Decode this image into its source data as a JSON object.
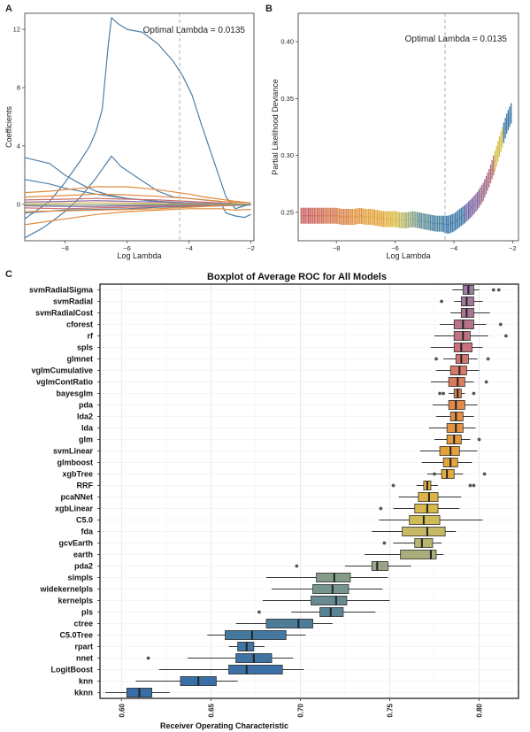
{
  "panels": {
    "A": {
      "letter": "A",
      "xlabel": "Log Lambda",
      "ylabel": "Coefficients",
      "annotation": "Optimal Lambda = 0.0135",
      "xlim": [
        -9.3,
        -1.9
      ],
      "ylim": [
        -2.5,
        13.1
      ],
      "xticks": [
        -8,
        -6,
        -4,
        -2
      ],
      "yticks": [
        0,
        4,
        8,
        12
      ],
      "optimal_log_lambda": -4.3
    },
    "B": {
      "letter": "B",
      "xlabel": "Log Lambda",
      "ylabel": "Partial Likelihood Deviance",
      "annotation": "Optimal Lambda = 0.0135",
      "xlim": [
        -9.3,
        -1.8
      ],
      "ylim": [
        0.225,
        0.425
      ],
      "xticks": [
        -8,
        -6,
        -4,
        -2
      ],
      "yticks": [
        0.25,
        0.3,
        0.35,
        0.4
      ],
      "optimal_log_lambda": -4.3
    },
    "C": {
      "letter": "C",
      "title": "Boxplot of Average ROC for All Models",
      "xlabel": "Receiver Operating Characteristic",
      "xlim": [
        0.588,
        0.822
      ],
      "xticks": [
        0.6,
        0.65,
        0.7,
        0.75,
        0.8
      ]
    }
  },
  "chart_data": [
    {
      "type": "line",
      "panel": "A",
      "xlabel": "Log Lambda",
      "ylabel": "Coefficients",
      "series": [
        {
          "color": "#4f7fa6",
          "x": [
            -9.3,
            -8.5,
            -8.0,
            -7.5,
            -7.2,
            -7.0,
            -6.8,
            -6.6,
            -6.5,
            -6.3,
            -6.0,
            -5.5,
            -5.0,
            -4.5,
            -4.2,
            -3.9,
            -3.6,
            -3.2,
            -2.8,
            -2.5,
            -2.2,
            -2.0
          ],
          "y": [
            -1.0,
            0.2,
            1.5,
            3.0,
            4.0,
            5.0,
            6.5,
            11.0,
            12.8,
            12.4,
            12.0,
            11.8,
            11.0,
            9.8,
            8.8,
            7.5,
            5.5,
            3.0,
            0.5,
            -0.3,
            -0.1,
            0.0
          ]
        },
        {
          "color": "#4f7fa6",
          "x": [
            -9.3,
            -8.7,
            -8.0,
            -7.5,
            -7.0,
            -6.6,
            -6.5,
            -6.2,
            -5.5,
            -5.0,
            -4.5,
            -4.0,
            -3.5,
            -3.0,
            -2.8,
            -2.5,
            -2.2,
            -2.0
          ],
          "y": [
            -2.3,
            -1.6,
            -0.5,
            0.5,
            1.8,
            3.0,
            3.3,
            2.6,
            1.6,
            0.9,
            0.5,
            0.4,
            0.3,
            0.2,
            -0.6,
            -0.8,
            -0.9,
            -0.7
          ]
        },
        {
          "color": "#4f7fa6",
          "x": [
            -9.3,
            -8.5,
            -8.0,
            -7.5,
            -7.0,
            -6.5,
            -6.0,
            -5.5,
            -5.0,
            -4.5,
            -4.0,
            -3.5,
            -3.0,
            -2.5,
            -2.0
          ],
          "y": [
            3.2,
            2.8,
            2.0,
            1.4,
            0.9,
            0.6,
            0.4,
            0.3,
            0.2,
            0.1,
            0.05,
            0.0,
            0.0,
            0.0,
            0.0
          ]
        },
        {
          "color": "#4f7fa6",
          "x": [
            -9.3,
            -8.5,
            -8.0,
            -7.0,
            -6.0,
            -5.0,
            -4.0,
            -3.0,
            -2.0
          ],
          "y": [
            1.7,
            1.4,
            1.1,
            0.7,
            0.4,
            0.2,
            0.1,
            0.0,
            0.0
          ]
        },
        {
          "color": "#4f7fa6",
          "x": [
            -9.3,
            -8.0,
            -7.0,
            -6.0,
            -5.0,
            -4.0,
            -3.0,
            -2.0
          ],
          "y": [
            -0.6,
            -0.4,
            -0.35,
            -0.3,
            -0.2,
            -0.15,
            -0.1,
            -0.05
          ]
        },
        {
          "color": "#e08a3c",
          "x": [
            -9.3,
            -8.5,
            -8.0,
            -7.0,
            -6.0,
            -5.0,
            -4.0,
            -3.5,
            -3.0,
            -2.5,
            -2.0
          ],
          "y": [
            0.8,
            0.9,
            1.0,
            1.2,
            1.2,
            1.0,
            0.7,
            0.5,
            0.35,
            0.2,
            0.1
          ]
        },
        {
          "color": "#e08a3c",
          "x": [
            -9.3,
            -8.0,
            -7.0,
            -6.0,
            -5.0,
            -4.0,
            -3.0,
            -2.5,
            -2.0
          ],
          "y": [
            -1.4,
            -1.0,
            -0.7,
            -0.5,
            -0.4,
            -0.3,
            -0.3,
            -0.4,
            -0.35
          ]
        },
        {
          "color": "#e08a3c",
          "x": [
            -9.3,
            -8.0,
            -7.0,
            -6.0,
            -5.0,
            -4.0,
            -3.0,
            -2.0
          ],
          "y": [
            0.5,
            0.6,
            0.7,
            0.65,
            0.55,
            0.4,
            0.2,
            0.1
          ]
        },
        {
          "color": "#e08a3c",
          "x": [
            -9.3,
            -8.0,
            -7.0,
            -6.0,
            -5.0,
            -4.0,
            -3.0,
            -2.0
          ],
          "y": [
            -0.5,
            -0.45,
            -0.4,
            -0.35,
            -0.3,
            -0.2,
            -0.1,
            0.0
          ]
        },
        {
          "color": "#c9706a",
          "x": [
            -9.3,
            -8.0,
            -7.0,
            -6.0,
            -5.0,
            -4.0,
            -3.0,
            -2.0
          ],
          "y": [
            0.3,
            0.35,
            0.4,
            0.35,
            0.3,
            0.2,
            0.1,
            0.0
          ]
        },
        {
          "color": "#c9706a",
          "x": [
            -9.3,
            -8.0,
            -7.0,
            -6.0,
            -5.0,
            -4.0,
            -3.0,
            -2.0
          ],
          "y": [
            -0.25,
            -0.3,
            -0.25,
            -0.2,
            -0.15,
            -0.1,
            -0.05,
            0.0
          ]
        },
        {
          "color": "#8e6aa8",
          "x": [
            -9.3,
            -8.0,
            -7.0,
            -6.0,
            -5.0,
            -4.0,
            -3.0,
            -2.0
          ],
          "y": [
            0.15,
            0.2,
            0.25,
            0.2,
            0.15,
            0.1,
            0.05,
            0.0
          ]
        },
        {
          "color": "#8e6aa8",
          "x": [
            -9.3,
            -8.0,
            -7.0,
            -6.0,
            -5.0,
            -4.0,
            -3.0,
            -2.0
          ],
          "y": [
            -0.1,
            -0.15,
            -0.15,
            -0.1,
            -0.08,
            -0.05,
            -0.02,
            0.0
          ]
        },
        {
          "color": "#d8b655",
          "x": [
            -9.3,
            -8.0,
            -7.0,
            -6.0,
            -5.0,
            -4.0,
            -3.0,
            -2.0
          ],
          "y": [
            0.05,
            0.08,
            0.1,
            0.08,
            0.05,
            0.03,
            0.01,
            0.0
          ]
        },
        {
          "color": "#7fa37a",
          "x": [
            -9.3,
            -8.0,
            -7.0,
            -6.0,
            -5.0,
            -4.0,
            -3.0,
            -2.0
          ],
          "y": [
            -0.05,
            -0.05,
            -0.04,
            -0.03,
            -0.02,
            -0.01,
            0.0,
            0.0
          ]
        }
      ]
    },
    {
      "type": "scatter",
      "panel": "B",
      "xlabel": "Log Lambda",
      "ylabel": "Partial Likelihood Deviance",
      "x": [
        -9.2,
        -9.0,
        -8.8,
        -8.6,
        -8.4,
        -8.2,
        -8.0,
        -7.8,
        -7.6,
        -7.4,
        -7.2,
        -7.0,
        -6.8,
        -6.6,
        -6.4,
        -6.2,
        -6.0,
        -5.8,
        -5.6,
        -5.4,
        -5.2,
        -5.0,
        -4.8,
        -4.6,
        -4.4,
        -4.2,
        -4.0,
        -3.8,
        -3.6,
        -3.4,
        -3.2,
        -3.0,
        -2.8,
        -2.6,
        -2.4,
        -2.2,
        -2.0
      ],
      "y": [
        0.247,
        0.247,
        0.247,
        0.247,
        0.247,
        0.247,
        0.247,
        0.246,
        0.246,
        0.246,
        0.247,
        0.246,
        0.246,
        0.245,
        0.244,
        0.244,
        0.244,
        0.243,
        0.243,
        0.244,
        0.243,
        0.242,
        0.241,
        0.24,
        0.24,
        0.239,
        0.241,
        0.245,
        0.249,
        0.254,
        0.26,
        0.268,
        0.28,
        0.295,
        0.312,
        0.328,
        0.34
      ],
      "err": [
        0.007,
        0.007,
        0.007,
        0.007,
        0.007,
        0.007,
        0.007,
        0.007,
        0.007,
        0.007,
        0.007,
        0.007,
        0.007,
        0.007,
        0.007,
        0.007,
        0.007,
        0.007,
        0.007,
        0.007,
        0.007,
        0.007,
        0.007,
        0.007,
        0.007,
        0.008,
        0.008,
        0.008,
        0.008,
        0.008,
        0.008,
        0.008,
        0.008,
        0.009,
        0.009,
        0.009,
        0.009
      ]
    },
    {
      "type": "box",
      "panel": "C",
      "title": "Boxplot of Average ROC for All Models",
      "xlabel": "Receiver Operating Characteristic",
      "models": [
        {
          "name": "svmRadialSigma",
          "q1": 0.791,
          "median": 0.794,
          "q3": 0.797,
          "wl": 0.785,
          "wh": 0.8,
          "out": [
            0.808,
            0.811
          ],
          "color": "#9b7ba1"
        },
        {
          "name": "svmRadial",
          "q1": 0.79,
          "median": 0.793,
          "q3": 0.797,
          "wl": 0.786,
          "wh": 0.802,
          "out": [
            0.779
          ],
          "color": "#a2779a"
        },
        {
          "name": "svmRadialCost",
          "q1": 0.79,
          "median": 0.793,
          "q3": 0.797,
          "wl": 0.784,
          "wh": 0.806,
          "out": [],
          "color": "#aa7492"
        },
        {
          "name": "cforest",
          "q1": 0.786,
          "median": 0.791,
          "q3": 0.797,
          "wl": 0.778,
          "wh": 0.804,
          "out": [
            0.812
          ],
          "color": "#b6738a"
        },
        {
          "name": "rf",
          "q1": 0.786,
          "median": 0.791,
          "q3": 0.795,
          "wl": 0.775,
          "wh": 0.805,
          "out": [
            0.815
          ],
          "color": "#c07282"
        },
        {
          "name": "spls",
          "q1": 0.786,
          "median": 0.79,
          "q3": 0.796,
          "wl": 0.773,
          "wh": 0.802,
          "out": [],
          "color": "#c9727a"
        },
        {
          "name": "glmnet",
          "q1": 0.787,
          "median": 0.79,
          "q3": 0.794,
          "wl": 0.78,
          "wh": 0.799,
          "out": [
            0.776,
            0.805
          ],
          "color": "#d07470"
        },
        {
          "name": "vglmCumulative",
          "q1": 0.784,
          "median": 0.789,
          "q3": 0.793,
          "wl": 0.776,
          "wh": 0.8,
          "out": [],
          "color": "#d67866"
        },
        {
          "name": "vglmContRatio",
          "q1": 0.783,
          "median": 0.788,
          "q3": 0.792,
          "wl": 0.773,
          "wh": 0.797,
          "out": [
            0.804
          ],
          "color": "#db7d5c"
        },
        {
          "name": "bayesglm",
          "q1": 0.786,
          "median": 0.788,
          "q3": 0.79,
          "wl": 0.783,
          "wh": 0.792,
          "out": [
            0.778,
            0.78,
            0.797
          ],
          "color": "#df8252"
        },
        {
          "name": "pda",
          "q1": 0.783,
          "median": 0.787,
          "q3": 0.792,
          "wl": 0.774,
          "wh": 0.799,
          "out": [],
          "color": "#e2884a"
        },
        {
          "name": "lda2",
          "q1": 0.784,
          "median": 0.787,
          "q3": 0.791,
          "wl": 0.776,
          "wh": 0.797,
          "out": [],
          "color": "#e38e44"
        },
        {
          "name": "lda",
          "q1": 0.782,
          "median": 0.787,
          "q3": 0.791,
          "wl": 0.772,
          "wh": 0.798,
          "out": [],
          "color": "#e49440"
        },
        {
          "name": "glm",
          "q1": 0.782,
          "median": 0.786,
          "q3": 0.79,
          "wl": 0.775,
          "wh": 0.795,
          "out": [
            0.8
          ],
          "color": "#e49a3c"
        },
        {
          "name": "svmLinear",
          "q1": 0.778,
          "median": 0.784,
          "q3": 0.789,
          "wl": 0.767,
          "wh": 0.799,
          "out": [],
          "color": "#e4a03a"
        },
        {
          "name": "glmboost",
          "q1": 0.78,
          "median": 0.784,
          "q3": 0.788,
          "wl": 0.768,
          "wh": 0.796,
          "out": [],
          "color": "#e3a63a"
        },
        {
          "name": "xgbTree",
          "q1": 0.779,
          "median": 0.782,
          "q3": 0.786,
          "wl": 0.771,
          "wh": 0.791,
          "out": [
            0.775,
            0.803
          ],
          "color": "#e2ab3c"
        },
        {
          "name": "RRF",
          "q1": 0.769,
          "median": 0.771,
          "q3": 0.773,
          "wl": 0.765,
          "wh": 0.777,
          "out": [
            0.752,
            0.795,
            0.797
          ],
          "color": "#e0b040"
        },
        {
          "name": "pcaNNet",
          "q1": 0.766,
          "median": 0.772,
          "q3": 0.777,
          "wl": 0.755,
          "wh": 0.79,
          "out": [],
          "color": "#dcb446"
        },
        {
          "name": "xgbLinear",
          "q1": 0.764,
          "median": 0.771,
          "q3": 0.777,
          "wl": 0.752,
          "wh": 0.789,
          "out": [
            0.745
          ],
          "color": "#d6b84d"
        },
        {
          "name": "C5.0",
          "q1": 0.761,
          "median": 0.769,
          "q3": 0.778,
          "wl": 0.744,
          "wh": 0.802,
          "out": [],
          "color": "#cfba56"
        },
        {
          "name": "fda",
          "q1": 0.757,
          "median": 0.771,
          "q3": 0.781,
          "wl": 0.74,
          "wh": 0.787,
          "out": [],
          "color": "#c7ba62"
        },
        {
          "name": "gcvEarth",
          "q1": 0.764,
          "median": 0.768,
          "q3": 0.774,
          "wl": 0.752,
          "wh": 0.779,
          "out": [
            0.747
          ],
          "color": "#b8b56f"
        },
        {
          "name": "earth",
          "q1": 0.756,
          "median": 0.773,
          "q3": 0.776,
          "wl": 0.736,
          "wh": 0.78,
          "out": [],
          "color": "#a9ad7b"
        },
        {
          "name": "pda2",
          "q1": 0.74,
          "median": 0.743,
          "q3": 0.749,
          "wl": 0.725,
          "wh": 0.762,
          "out": [
            0.698
          ],
          "color": "#98a483"
        },
        {
          "name": "simpls",
          "q1": 0.709,
          "median": 0.719,
          "q3": 0.728,
          "wl": 0.681,
          "wh": 0.749,
          "out": [],
          "color": "#859b89"
        },
        {
          "name": "widekernelpls",
          "q1": 0.707,
          "median": 0.718,
          "q3": 0.727,
          "wl": 0.684,
          "wh": 0.746,
          "out": [],
          "color": "#76938e"
        },
        {
          "name": "kernelpls",
          "q1": 0.706,
          "median": 0.72,
          "q3": 0.726,
          "wl": 0.679,
          "wh": 0.75,
          "out": [],
          "color": "#688b92"
        },
        {
          "name": "pls",
          "q1": 0.711,
          "median": 0.717,
          "q3": 0.724,
          "wl": 0.695,
          "wh": 0.742,
          "out": [
            0.677
          ],
          "color": "#5a8396"
        },
        {
          "name": "ctree",
          "q1": 0.681,
          "median": 0.699,
          "q3": 0.707,
          "wl": 0.664,
          "wh": 0.718,
          "out": [],
          "color": "#4e7d9a"
        },
        {
          "name": "C5.0Tree",
          "q1": 0.658,
          "median": 0.673,
          "q3": 0.692,
          "wl": 0.648,
          "wh": 0.703,
          "out": [],
          "color": "#45789f"
        },
        {
          "name": "rpart",
          "q1": 0.665,
          "median": 0.67,
          "q3": 0.674,
          "wl": 0.66,
          "wh": 0.68,
          "out": [],
          "color": "#4276a2"
        },
        {
          "name": "nnet",
          "q1": 0.664,
          "median": 0.674,
          "q3": 0.684,
          "wl": 0.637,
          "wh": 0.696,
          "out": [
            0.615
          ],
          "color": "#3e73a4"
        },
        {
          "name": "LogitBoost",
          "q1": 0.66,
          "median": 0.67,
          "q3": 0.69,
          "wl": 0.621,
          "wh": 0.702,
          "out": [],
          "color": "#3b71a6"
        },
        {
          "name": "knn",
          "q1": 0.633,
          "median": 0.643,
          "q3": 0.653,
          "wl": 0.608,
          "wh": 0.665,
          "out": [],
          "color": "#396fa7"
        },
        {
          "name": "kknn",
          "q1": 0.603,
          "median": 0.61,
          "q3": 0.617,
          "wl": 0.591,
          "wh": 0.627,
          "out": [],
          "color": "#386ea8"
        }
      ]
    }
  ]
}
